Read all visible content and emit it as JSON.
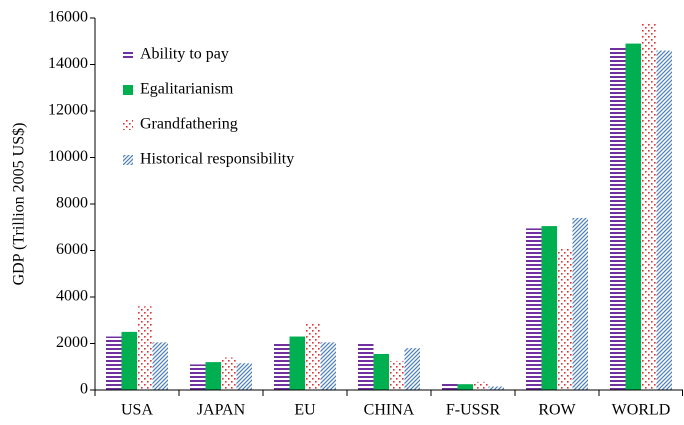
{
  "chart_data": {
    "type": "bar",
    "y_label": "GDP (Trillion 2005 US$)",
    "categories": [
      "USA",
      "JAPAN",
      "EU",
      "CHINA",
      "F-USSR",
      "ROW",
      "WORLD"
    ],
    "series": [
      {
        "name": "Ability to pay",
        "color": "#7030a0",
        "pattern": "hlines",
        "values": [
          2300,
          1100,
          2050,
          2000,
          300,
          6950,
          14750
        ]
      },
      {
        "name": "Egalitarianism",
        "color": "#00b050",
        "pattern": "solid",
        "values": [
          2500,
          1200,
          2300,
          1550,
          250,
          7050,
          14900
        ]
      },
      {
        "name": "Grandfathering",
        "color": "#e03030",
        "pattern": "dots",
        "values": [
          3600,
          1400,
          2850,
          1250,
          350,
          6100,
          15800
        ]
      },
      {
        "name": "Historical responsibility",
        "color": "#4f81bd",
        "pattern": "diagonal",
        "values": [
          2050,
          1150,
          2050,
          1800,
          150,
          7400,
          14600
        ]
      }
    ],
    "ylim": [
      0,
      16000
    ],
    "yticks": [
      0,
      2000,
      4000,
      6000,
      8000,
      10000,
      12000,
      14000,
      16000
    ],
    "legend": "upper left"
  }
}
